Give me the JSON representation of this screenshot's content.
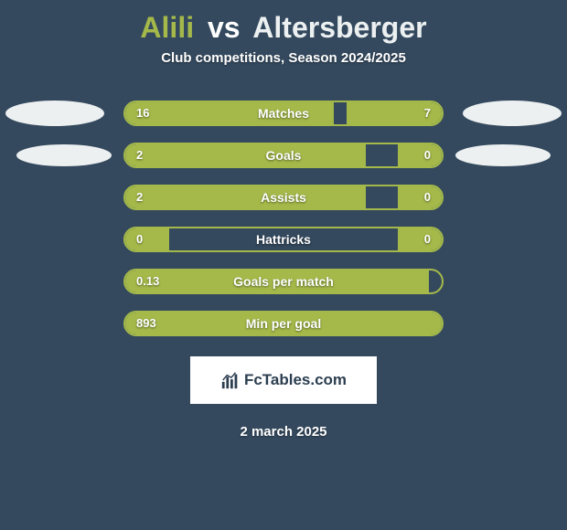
{
  "title": {
    "player1": "Alili",
    "vs": "vs",
    "player2": "Altersberger"
  },
  "subtitle": "Club competitions, Season 2024/2025",
  "colors": {
    "bar": "#a4b94a",
    "border": "#a4b94a",
    "background": "#34495e",
    "text": "#ffffff"
  },
  "stats": [
    {
      "label": "Matches",
      "left_val": "16",
      "right_val": "7",
      "left_pct": 66,
      "right_pct": 30
    },
    {
      "label": "Goals",
      "left_val": "2",
      "right_val": "0",
      "left_pct": 76,
      "right_pct": 14
    },
    {
      "label": "Assists",
      "left_val": "2",
      "right_val": "0",
      "left_pct": 76,
      "right_pct": 14
    },
    {
      "label": "Hattricks",
      "left_val": "0",
      "right_val": "0",
      "left_pct": 14,
      "right_pct": 14
    },
    {
      "label": "Goals per match",
      "left_val": "0.13",
      "right_val": "",
      "left_pct": 96,
      "right_pct": 0
    },
    {
      "label": "Min per goal",
      "left_val": "893",
      "right_val": "",
      "left_pct": 100,
      "right_pct": 0
    }
  ],
  "brand": "FcTables.com",
  "date": "2 march 2025"
}
